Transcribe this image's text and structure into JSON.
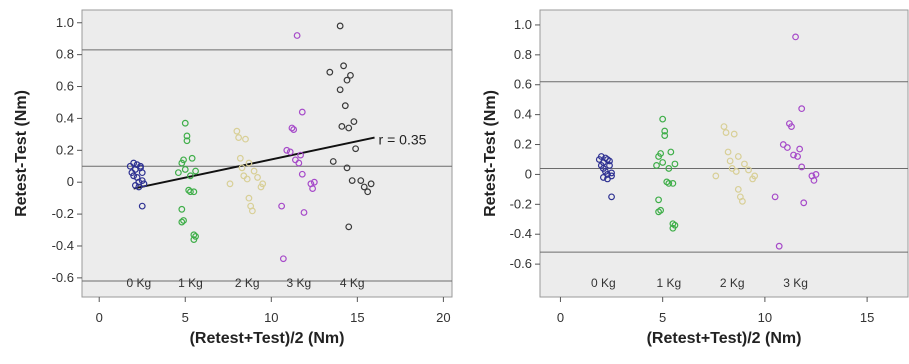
{
  "chart_data": [
    {
      "type": "scatter",
      "title": "",
      "xlabel": "(Retest+Test)/2 (Nm)",
      "ylabel": "Retest-Test (Nm)",
      "xlim": [
        -1,
        20.5
      ],
      "ylim": [
        -0.72,
        1.08
      ],
      "xticks": [
        "0",
        "5",
        "10",
        "15",
        "20"
      ],
      "yticks": [
        "-0.6",
        "-0.4",
        "-0.2",
        "0",
        "0.2",
        "0.4",
        "0.6",
        "0.8",
        "1.0"
      ],
      "background": "#ececec",
      "reference_lines": [
        0.83,
        0.1,
        -0.62
      ],
      "regression": {
        "label": "r = 0.35",
        "from": [
          2,
          -0.04
        ],
        "to": [
          16,
          0.28
        ],
        "color": "#111111"
      },
      "group_labels": [
        {
          "text": "0 Kg",
          "x": 2.3
        },
        {
          "text": "1 Kg",
          "x": 5.3
        },
        {
          "text": "2 Kg",
          "x": 8.6
        },
        {
          "text": "3 Kg",
          "x": 11.6
        },
        {
          "text": "4 Kg",
          "x": 14.7
        }
      ],
      "series": [
        {
          "group": "0 Kg",
          "color": "#2e3192",
          "points": [
            [
              1.8,
              0.1
            ],
            [
              1.9,
              0.06
            ],
            [
              2.0,
              0.12
            ],
            [
              2.0,
              0.04
            ],
            [
              2.1,
              0.08
            ],
            [
              2.2,
              0.03
            ],
            [
              2.2,
              0.11
            ],
            [
              2.3,
              0.0
            ],
            [
              2.1,
              -0.02
            ],
            [
              2.4,
              0.1
            ],
            [
              2.3,
              -0.03
            ],
            [
              2.5,
              0.06
            ],
            [
              2.5,
              0.01
            ],
            [
              2.6,
              -0.01
            ],
            [
              2.4,
              0.09
            ],
            [
              2.5,
              -0.15
            ]
          ]
        },
        {
          "group": "1 Kg",
          "color": "#3fae49",
          "points": [
            [
              4.6,
              0.06
            ],
            [
              4.8,
              0.12
            ],
            [
              4.9,
              0.14
            ],
            [
              5.0,
              0.08
            ],
            [
              5.0,
              0.37
            ],
            [
              5.1,
              0.29
            ],
            [
              5.1,
              0.26
            ],
            [
              5.2,
              -0.05
            ],
            [
              5.3,
              0.04
            ],
            [
              5.3,
              -0.06
            ],
            [
              5.4,
              0.15
            ],
            [
              5.5,
              -0.06
            ],
            [
              5.6,
              0.07
            ],
            [
              4.8,
              -0.17
            ],
            [
              4.8,
              -0.25
            ],
            [
              4.9,
              -0.24
            ],
            [
              5.5,
              -0.33
            ],
            [
              5.6,
              -0.34
            ],
            [
              5.5,
              -0.36
            ]
          ]
        },
        {
          "group": "2 Kg",
          "color": "#d8cf96",
          "points": [
            [
              7.6,
              -0.01
            ],
            [
              8.0,
              0.32
            ],
            [
              8.1,
              0.28
            ],
            [
              8.2,
              0.15
            ],
            [
              8.3,
              0.09
            ],
            [
              8.4,
              0.04
            ],
            [
              8.5,
              0.27
            ],
            [
              8.6,
              0.02
            ],
            [
              8.7,
              0.12
            ],
            [
              8.7,
              -0.1
            ],
            [
              8.8,
              -0.15
            ],
            [
              8.9,
              -0.18
            ],
            [
              9.0,
              0.07
            ],
            [
              9.2,
              0.03
            ],
            [
              9.4,
              -0.03
            ],
            [
              9.5,
              -0.01
            ]
          ]
        },
        {
          "group": "3 Kg",
          "color": "#a64ac9",
          "points": [
            [
              10.6,
              -0.15
            ],
            [
              10.7,
              -0.48
            ],
            [
              10.9,
              0.2
            ],
            [
              11.1,
              0.19
            ],
            [
              11.2,
              0.34
            ],
            [
              11.3,
              0.33
            ],
            [
              11.4,
              0.14
            ],
            [
              11.5,
              0.92
            ],
            [
              11.6,
              0.12
            ],
            [
              11.7,
              0.17
            ],
            [
              11.8,
              0.05
            ],
            [
              11.8,
              0.44
            ],
            [
              11.9,
              -0.19
            ],
            [
              12.3,
              -0.01
            ],
            [
              12.4,
              -0.04
            ],
            [
              12.5,
              0.0
            ]
          ]
        },
        {
          "group": "4 Kg",
          "color": "#3a3a3a",
          "points": [
            [
              13.4,
              0.69
            ],
            [
              13.6,
              0.13
            ],
            [
              14.0,
              0.98
            ],
            [
              14.0,
              0.58
            ],
            [
              14.1,
              0.35
            ],
            [
              14.2,
              0.73
            ],
            [
              14.3,
              0.48
            ],
            [
              14.4,
              0.64
            ],
            [
              14.4,
              0.09
            ],
            [
              14.5,
              0.34
            ],
            [
              14.5,
              -0.28
            ],
            [
              14.6,
              0.67
            ],
            [
              14.7,
              0.01
            ],
            [
              14.8,
              0.38
            ],
            [
              14.9,
              0.21
            ],
            [
              15.2,
              0.01
            ],
            [
              15.4,
              -0.03
            ],
            [
              15.6,
              -0.06
            ],
            [
              15.8,
              -0.01
            ]
          ]
        }
      ]
    },
    {
      "type": "scatter",
      "title": "",
      "xlabel": "(Retest+Test)/2 (Nm)",
      "ylabel": "Retest-Test (Nm)",
      "xlim": [
        -1,
        17
      ],
      "ylim": [
        -0.82,
        1.1
      ],
      "xticks": [
        "0",
        "5",
        "10",
        "15"
      ],
      "yticks": [
        "-0.6",
        "-0.4",
        "-0.2",
        "0",
        "0.2",
        "0.4",
        "0.6",
        "0.8",
        "1.0"
      ],
      "background": "#ececec",
      "reference_lines": [
        0.62,
        0.04,
        -0.52
      ],
      "group_labels": [
        {
          "text": "0 Kg",
          "x": 2.1
        },
        {
          "text": "1 Kg",
          "x": 5.3
        },
        {
          "text": "2 Kg",
          "x": 8.4
        },
        {
          "text": "3 Kg",
          "x": 11.5
        }
      ],
      "series": [
        {
          "group": "0 Kg",
          "color": "#2e3192",
          "points": [
            [
              1.9,
              0.1
            ],
            [
              2.0,
              0.06
            ],
            [
              2.0,
              0.12
            ],
            [
              2.1,
              0.04
            ],
            [
              2.1,
              0.08
            ],
            [
              2.2,
              0.02
            ],
            [
              2.2,
              0.11
            ],
            [
              2.3,
              0.0
            ],
            [
              2.1,
              -0.02
            ],
            [
              2.3,
              0.1
            ],
            [
              2.3,
              -0.03
            ],
            [
              2.4,
              0.06
            ],
            [
              2.5,
              0.01
            ],
            [
              2.5,
              -0.01
            ],
            [
              2.4,
              0.09
            ],
            [
              2.5,
              -0.15
            ]
          ]
        },
        {
          "group": "1 Kg",
          "color": "#3fae49",
          "points": [
            [
              4.7,
              0.06
            ],
            [
              4.8,
              0.12
            ],
            [
              4.9,
              0.14
            ],
            [
              5.0,
              0.08
            ],
            [
              5.0,
              0.37
            ],
            [
              5.1,
              0.29
            ],
            [
              5.1,
              0.26
            ],
            [
              5.2,
              -0.05
            ],
            [
              5.3,
              0.04
            ],
            [
              5.3,
              -0.06
            ],
            [
              5.4,
              0.15
            ],
            [
              5.5,
              -0.06
            ],
            [
              5.6,
              0.07
            ],
            [
              4.8,
              -0.17
            ],
            [
              4.8,
              -0.25
            ],
            [
              4.9,
              -0.24
            ],
            [
              5.5,
              -0.33
            ],
            [
              5.6,
              -0.34
            ],
            [
              5.5,
              -0.36
            ]
          ]
        },
        {
          "group": "2 Kg",
          "color": "#d8cf96",
          "points": [
            [
              7.6,
              -0.01
            ],
            [
              8.0,
              0.32
            ],
            [
              8.1,
              0.28
            ],
            [
              8.2,
              0.15
            ],
            [
              8.3,
              0.09
            ],
            [
              8.4,
              0.04
            ],
            [
              8.5,
              0.27
            ],
            [
              8.6,
              0.02
            ],
            [
              8.7,
              0.12
            ],
            [
              8.7,
              -0.1
            ],
            [
              8.8,
              -0.15
            ],
            [
              8.9,
              -0.18
            ],
            [
              9.0,
              0.07
            ],
            [
              9.2,
              0.03
            ],
            [
              9.4,
              -0.03
            ],
            [
              9.5,
              -0.01
            ]
          ]
        },
        {
          "group": "3 Kg",
          "color": "#a64ac9",
          "points": [
            [
              10.5,
              -0.15
            ],
            [
              10.7,
              -0.48
            ],
            [
              10.9,
              0.2
            ],
            [
              11.1,
              0.18
            ],
            [
              11.2,
              0.34
            ],
            [
              11.3,
              0.32
            ],
            [
              11.4,
              0.13
            ],
            [
              11.5,
              0.92
            ],
            [
              11.6,
              0.12
            ],
            [
              11.7,
              0.17
            ],
            [
              11.8,
              0.05
            ],
            [
              11.8,
              0.44
            ],
            [
              11.9,
              -0.19
            ],
            [
              12.3,
              -0.01
            ],
            [
              12.4,
              -0.04
            ],
            [
              12.5,
              0.0
            ]
          ]
        }
      ]
    }
  ]
}
